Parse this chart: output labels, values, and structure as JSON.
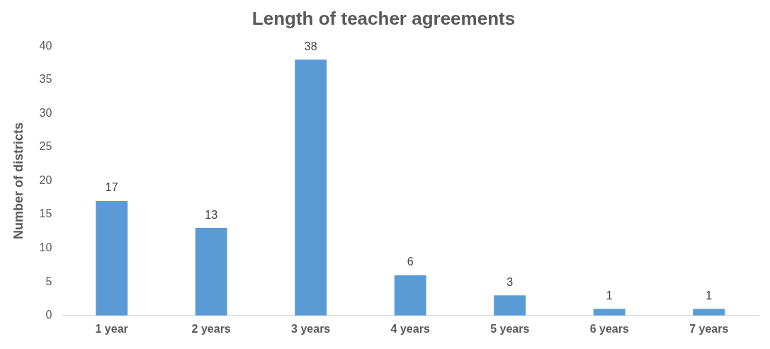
{
  "chart_data": {
    "type": "bar",
    "title": "Length of teacher agreements",
    "ylabel": "Number of districts",
    "categories": [
      "1 year",
      "2 years",
      "3 years",
      "4 years",
      "5 years",
      "6 years",
      "7 years"
    ],
    "values": [
      17,
      13,
      38,
      6,
      3,
      1,
      1
    ],
    "color": "#5b9bd5",
    "ylim": [
      0,
      40
    ],
    "yticks": [
      0,
      5,
      10,
      15,
      20,
      25,
      30,
      35,
      40
    ],
    "grid": false,
    "legend": false,
    "data_labels": true
  }
}
